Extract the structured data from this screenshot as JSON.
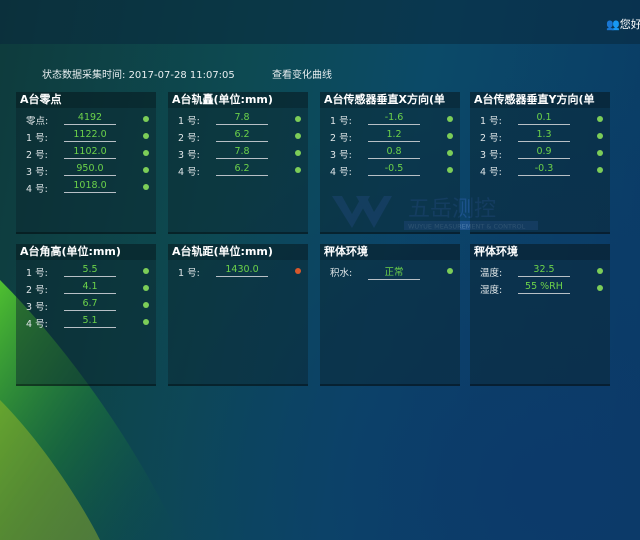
{
  "header": {
    "user_text": "您好"
  },
  "status": {
    "label": "状态数据采集时间:",
    "time": "2017-07-28 11:07:05",
    "curve_link": "查看变化曲线"
  },
  "watermark": {
    "text": "五岳测控",
    "sub": "WUYUE MEASUREMENT & CONTROL"
  },
  "colors": {
    "ok": "#7ccd58",
    "alarm": "#d8582c",
    "value": "#6cd24a"
  },
  "panels": [
    {
      "title": "A台零点",
      "rows": [
        {
          "label": "零点:",
          "value": "4192",
          "status": "ok"
        },
        {
          "label": "1 号:",
          "value": "1122.0",
          "status": "ok"
        },
        {
          "label": "2 号:",
          "value": "1102.0",
          "status": "ok"
        },
        {
          "label": "3 号:",
          "value": "950.0",
          "status": "ok"
        },
        {
          "label": "4 号:",
          "value": "1018.0",
          "status": "ok"
        }
      ]
    },
    {
      "title": "A台轨矗(单位:mm)",
      "rows": [
        {
          "label": "1 号:",
          "value": "7.8",
          "status": "ok"
        },
        {
          "label": "2 号:",
          "value": "6.2",
          "status": "ok"
        },
        {
          "label": "3 号:",
          "value": "7.8",
          "status": "ok"
        },
        {
          "label": "4 号:",
          "value": "6.2",
          "status": "ok"
        }
      ]
    },
    {
      "title": "A台传感器垂直X方向(单",
      "rows": [
        {
          "label": "1 号:",
          "value": "-1.6",
          "status": "ok"
        },
        {
          "label": "2 号:",
          "value": "1.2",
          "status": "ok"
        },
        {
          "label": "3 号:",
          "value": "0.8",
          "status": "ok"
        },
        {
          "label": "4 号:",
          "value": "-0.5",
          "status": "ok"
        }
      ]
    },
    {
      "title": "A台传感器垂直Y方向(单",
      "rows": [
        {
          "label": "1 号:",
          "value": "0.1",
          "status": "ok"
        },
        {
          "label": "2 号:",
          "value": "1.3",
          "status": "ok"
        },
        {
          "label": "3 号:",
          "value": "0.9",
          "status": "ok"
        },
        {
          "label": "4 号:",
          "value": "-0.3",
          "status": "ok"
        }
      ]
    },
    {
      "title": "A台角高(单位:mm)",
      "rows": [
        {
          "label": "1 号:",
          "value": "5.5",
          "status": "ok"
        },
        {
          "label": "2 号:",
          "value": "4.1",
          "status": "ok"
        },
        {
          "label": "3 号:",
          "value": "6.7",
          "status": "ok"
        },
        {
          "label": "4 号:",
          "value": "5.1",
          "status": "ok"
        }
      ]
    },
    {
      "title": "A台轨距(单位:mm)",
      "rows": [
        {
          "label": "1 号:",
          "value": "1430.0",
          "status": "alarm"
        }
      ]
    },
    {
      "title": "秤体环境",
      "rows": [
        {
          "label": "积水:",
          "value": "正常",
          "status": "ok"
        }
      ]
    },
    {
      "title": "秤体环境",
      "rows": [
        {
          "label": "温度:",
          "value": "32.5",
          "status": "ok"
        },
        {
          "label": "湿度:",
          "value": "55 %RH",
          "status": "ok"
        }
      ]
    }
  ]
}
